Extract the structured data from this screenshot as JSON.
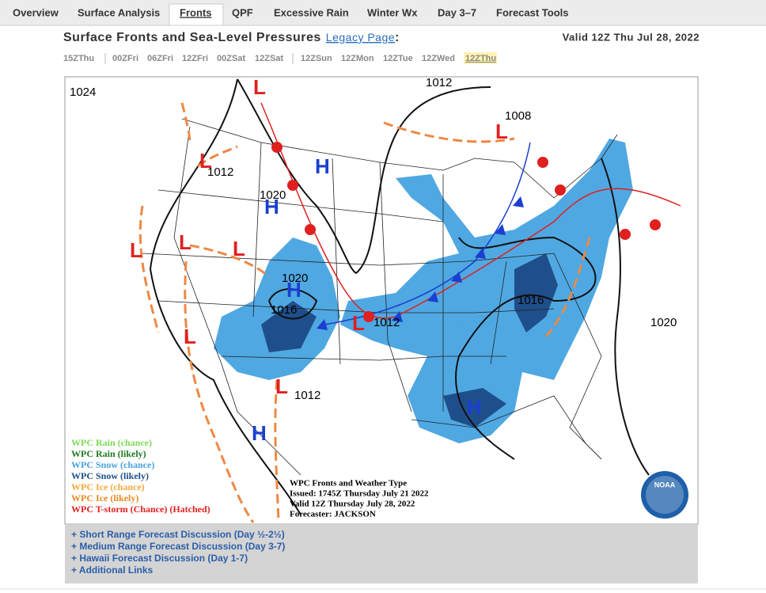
{
  "tabs": [
    "Overview",
    "Surface Analysis",
    "Fronts",
    "QPF",
    "Excessive Rain",
    "Winter Wx",
    "Day 3–7",
    "Forecast Tools"
  ],
  "header": {
    "title": "Surface Fronts and Sea-Level Pressures",
    "link": "Legacy Page",
    "suffix": ":",
    "valid": "Valid 12Z Thu Jul 28, 2022"
  },
  "times": [
    "15ZThu",
    "00ZFri",
    "06ZFri",
    "12ZFri",
    "00ZSat",
    "12ZSat",
    "12ZSun",
    "12ZMon",
    "12ZTue",
    "12ZWed",
    "12ZThu"
  ],
  "map": {
    "isobars": [
      "1024",
      "1012",
      "1008",
      "1012",
      "1020",
      "1020",
      "1016",
      "1012",
      "1016",
      "1020",
      "1012"
    ],
    "centers": [
      "L",
      "L",
      "L",
      "L",
      "L",
      "L",
      "L",
      "L",
      "L",
      "H",
      "H",
      "H",
      "H",
      "H"
    ],
    "legend": [
      {
        "text": "WPC Rain (chance)",
        "color": "#7ed957"
      },
      {
        "text": "WPC Rain (likely)",
        "color": "#1f7a1f"
      },
      {
        "text": "WPC Snow (chance)",
        "color": "#45a2e0"
      },
      {
        "text": "WPC Snow (likely)",
        "color": "#1d4f8a"
      },
      {
        "text": "WPC Ice (chance)",
        "color": "#f5a83a"
      },
      {
        "text": "WPC Ice (likely)",
        "color": "#e88a1e"
      },
      {
        "text": "WPC T-storm (Chance) (Hatched)",
        "color": "#e02020"
      }
    ],
    "info": [
      "WPC Fronts and Weather Type",
      "Issued: 1745Z Thursday July 21 2022",
      "Valid 12Z Thursday July 28, 2022",
      "Forecaster: JACKSON"
    ],
    "logo": "NOAA"
  },
  "links": [
    "+ Short Range Forecast Discussion (Day ½-2½)",
    "+ Medium Range Forecast Discussion (Day 3-7)",
    "+ Hawaii Forecast Discussion (Day 1-7)",
    "+ Additional Links"
  ]
}
